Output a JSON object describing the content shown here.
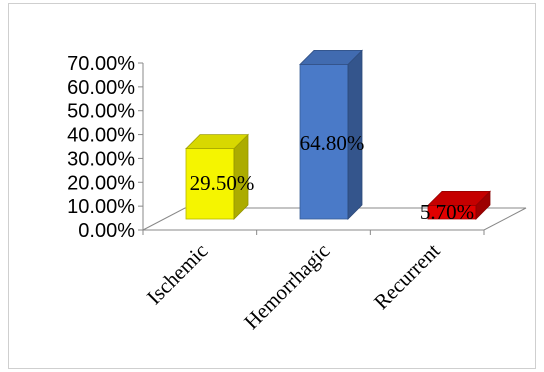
{
  "chart_data": {
    "type": "bar",
    "style": "3d-column",
    "categories": [
      "Ischemic",
      "Hemorrhagic",
      "Recurrent"
    ],
    "values": [
      29.5,
      64.8,
      5.7
    ],
    "data_labels": [
      "29.50%",
      "64.80%",
      "5.70%"
    ],
    "colors": [
      "#f5f500",
      "#4a7ac8",
      "#e00000"
    ],
    "yticks": [
      "0.00%",
      "10.00%",
      "20.00%",
      "30.00%",
      "40.00%",
      "50.00%",
      "60.00%",
      "70.00%"
    ],
    "ylim": [
      0,
      70
    ],
    "grid": false,
    "legend": "none"
  }
}
